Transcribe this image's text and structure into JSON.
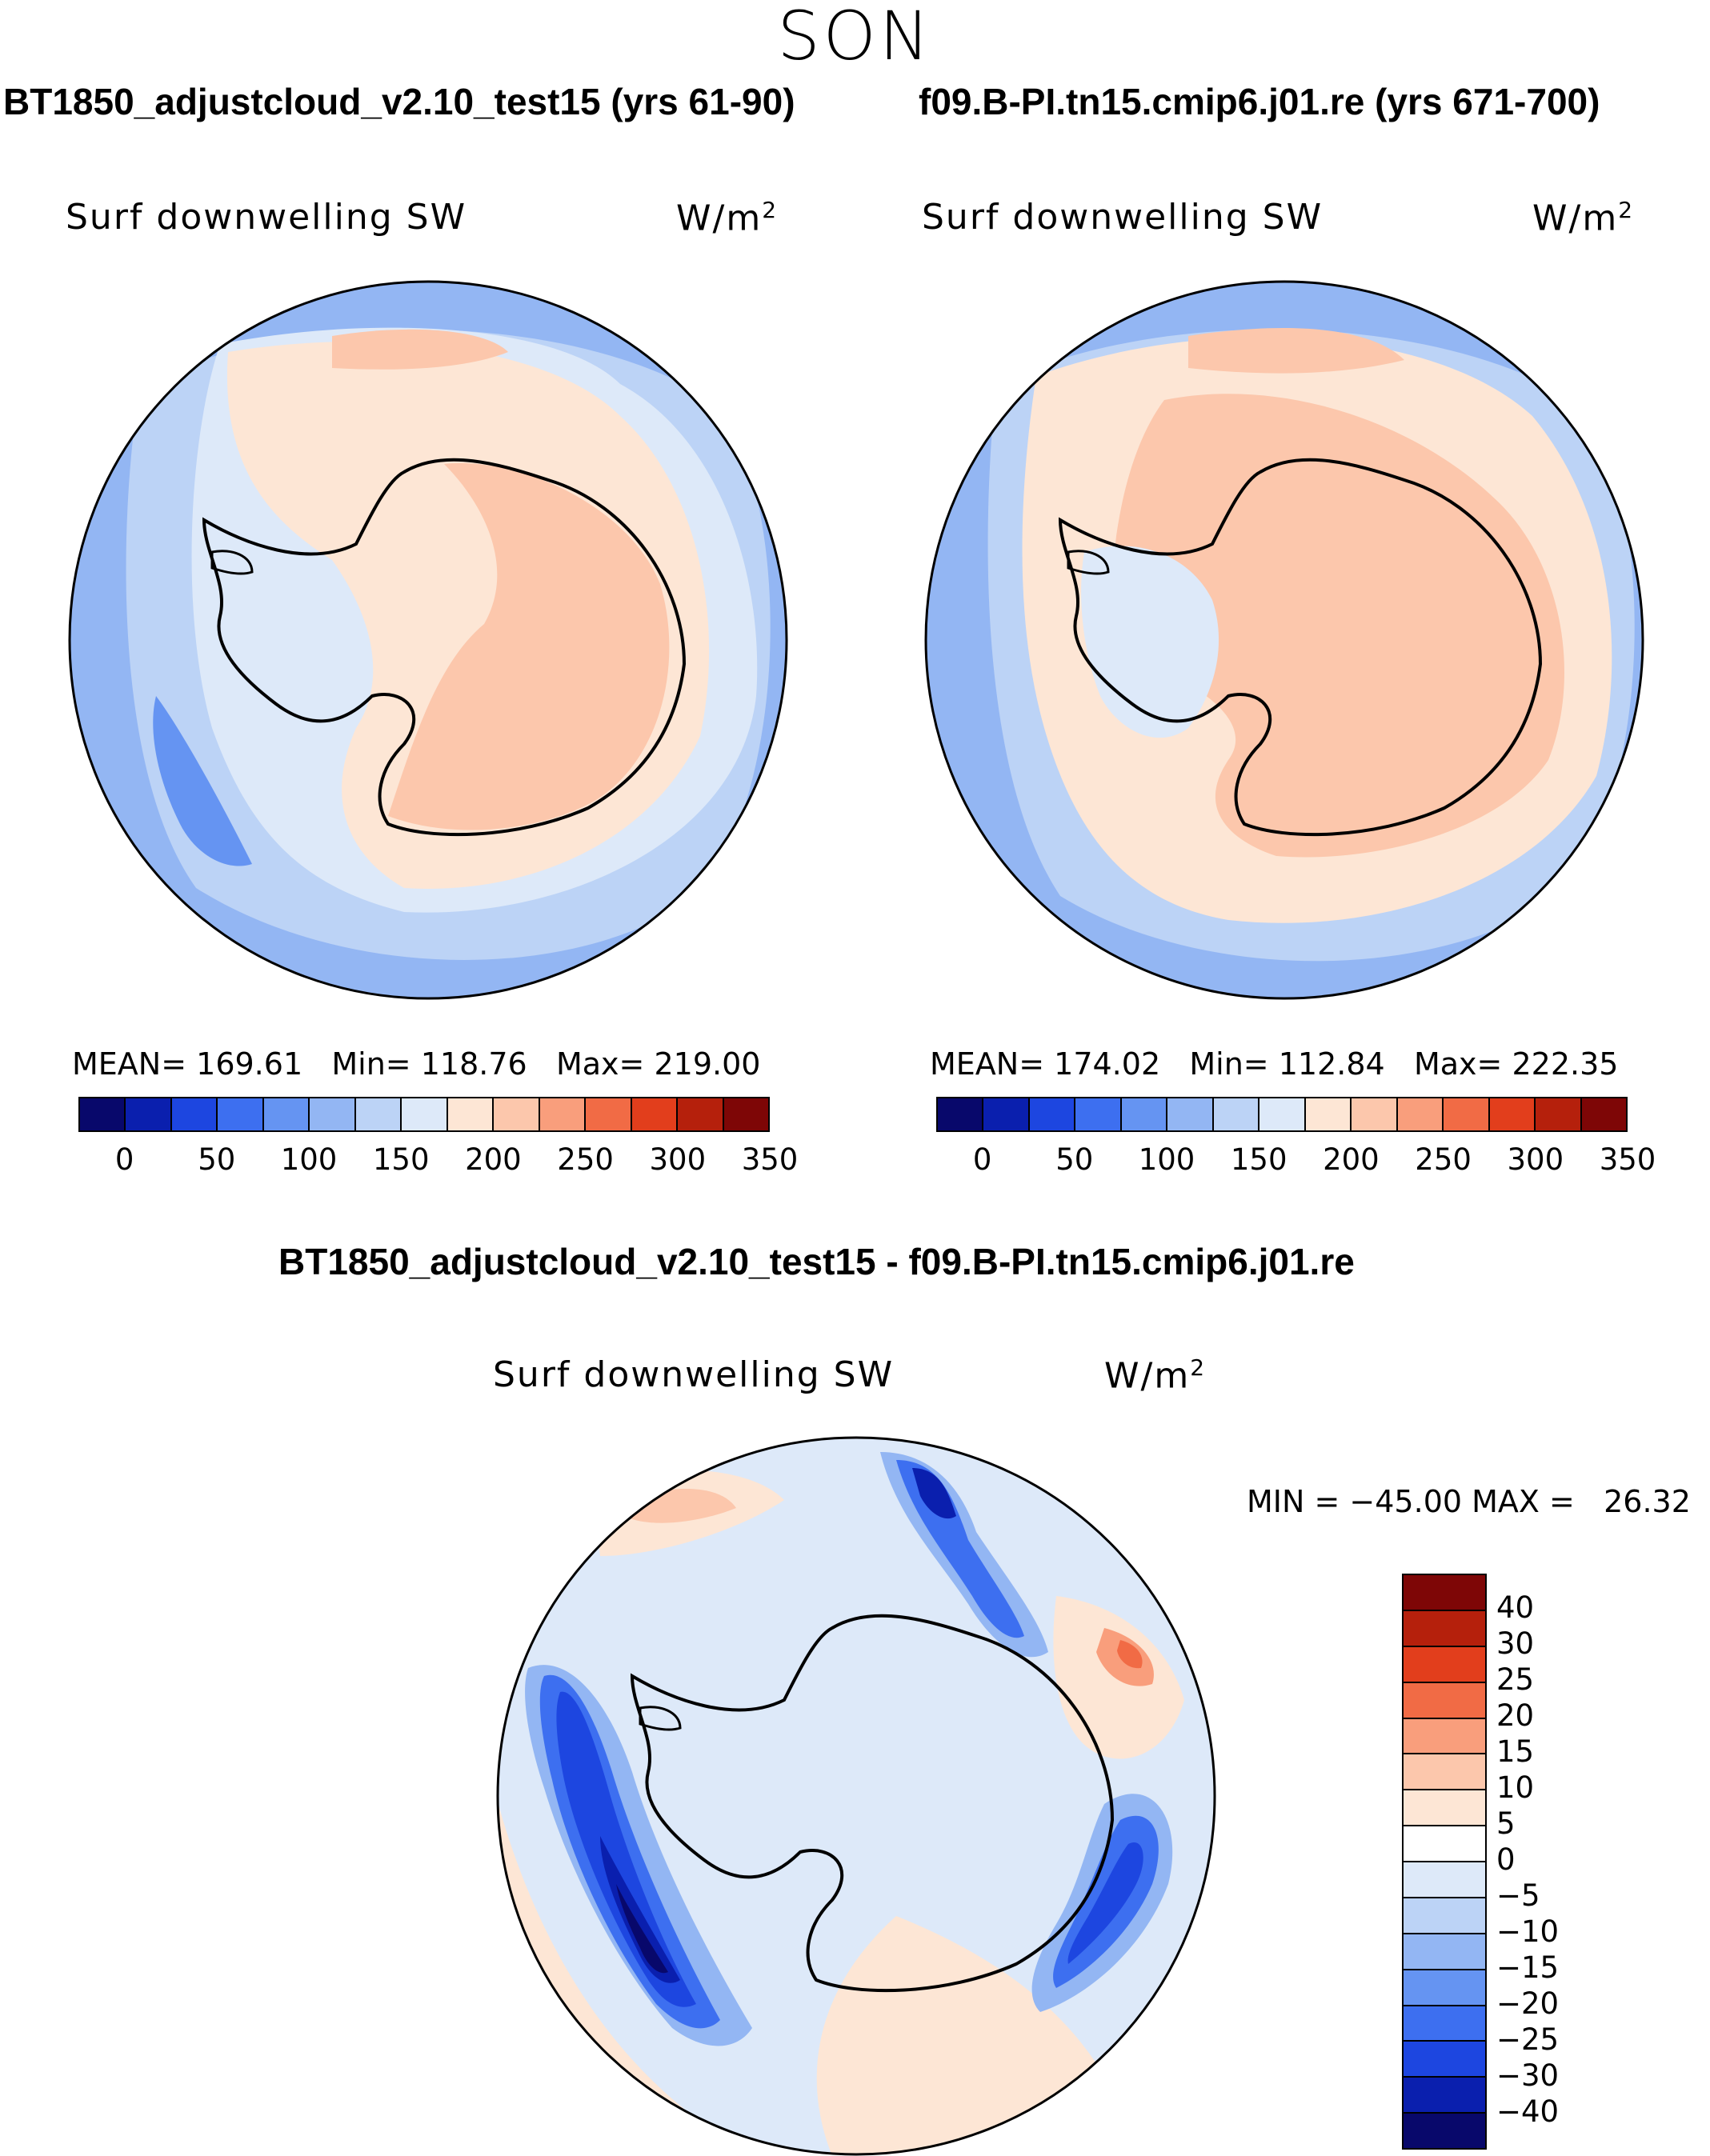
{
  "season": "SON",
  "panels": [
    {
      "title": "BT1850_adjustcloud_v2.10_test15 (yrs 61-90)",
      "variable": "Surf downwelling SW",
      "units": "W/m",
      "units_exp": "2",
      "stats": {
        "mean_label": "MEAN=",
        "mean": "169.61",
        "min_label": "Min=",
        "min": "118.76",
        "max_label": "Max=",
        "max": "219.00"
      }
    },
    {
      "title": "f09.B-PI.tn15.cmip6.j01.re (yrs 671-700)",
      "variable": "Surf downwelling SW",
      "units": "W/m",
      "units_exp": "2",
      "stats": {
        "mean_label": "MEAN=",
        "mean": "174.02",
        "min_label": "Min=",
        "min": "112.84",
        "max_label": "Max=",
        "max": "222.35"
      }
    }
  ],
  "diff_panel": {
    "title": "BT1850_adjustcloud_v2.10_test15 - f09.B-PI.tn15.cmip6.j01.re",
    "variable": "Surf downwelling SW",
    "units": "W/m",
    "units_exp": "2",
    "minmax": "MIN = −45.00 MAX =   26.32"
  },
  "colorbar_abs": {
    "ticks": [
      "0",
      "50",
      "100",
      "150",
      "200",
      "250",
      "300",
      "350"
    ],
    "colors": [
      "#08086b",
      "#0a1fae",
      "#1d46e0",
      "#3d6ff0",
      "#6594f2",
      "#93b6f3",
      "#bcd3f6",
      "#dde9f9",
      "#fde6d5",
      "#fcc7ac",
      "#f99e7c",
      "#f16b45",
      "#e23e1c",
      "#b5200c",
      "#7e0606"
    ]
  },
  "colorbar_diff": {
    "labels": [
      "40",
      "30",
      "25",
      "20",
      "15",
      "10",
      "5",
      "0",
      "−5",
      "−10",
      "−15",
      "−20",
      "−25",
      "−30",
      "−40"
    ],
    "colors": [
      "#7e0606",
      "#b5200c",
      "#e23e1c",
      "#f16b45",
      "#f99e7c",
      "#fcc7ac",
      "#fde6d5",
      "#ffffff",
      "#dde9f9",
      "#bcd3f6",
      "#93b6f3",
      "#6594f2",
      "#3d6ff0",
      "#1d46e0",
      "#0a1fae",
      "#08086b"
    ]
  }
}
